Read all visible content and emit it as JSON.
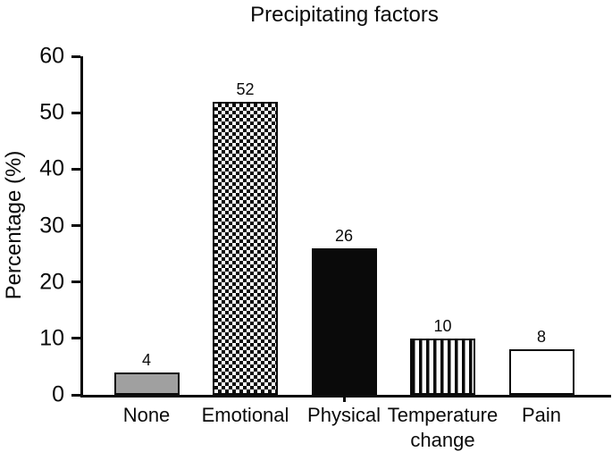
{
  "chart_data": {
    "type": "bar",
    "title": "Precipitating factors",
    "xlabel": "",
    "ylabel": "Percentage (%)",
    "ylim": [
      0,
      60
    ],
    "yticks": [
      0,
      10,
      20,
      30,
      40,
      50,
      60
    ],
    "grid": false,
    "legend": null,
    "categories": [
      "None",
      "Emotional",
      "Physical",
      "Temperature change",
      "Pain"
    ],
    "values": [
      4,
      52,
      26,
      10,
      8
    ],
    "value_labels": [
      "4",
      "52",
      "26",
      "10",
      "8"
    ],
    "bar_patterns": [
      "solid-gray",
      "checkerboard",
      "solid-black",
      "vertical-stripes",
      "white-outline"
    ],
    "colors": {
      "ink": "#0a0a0a",
      "gray_bar_fill": "#a0a0a0",
      "background": "#ffffff"
    }
  }
}
